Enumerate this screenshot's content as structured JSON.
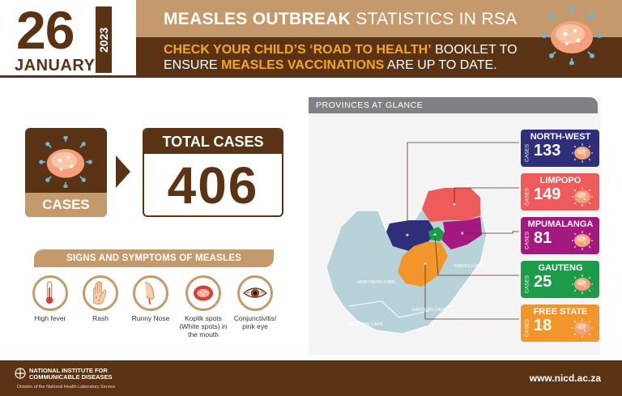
{
  "header": {
    "day": "26",
    "month": "JANUARY",
    "year": "2023",
    "title_bold": "MEASLES OUTBREAK",
    "title_rest": " STATISTICS IN RSA",
    "line1_bold": "CHECK YOUR CHILD’S ‘ROAD TO HEALTH’",
    "line1_rest": " BOOKLET TO",
    "line2_start": "ENSURE ",
    "line2_bold": "MEASLES VACCINATIONS",
    "line2_rest": " ARE UP TO DATE."
  },
  "cases": {
    "label": "CASES",
    "total_label": "TOTAL CASES",
    "total_value": "406"
  },
  "symptoms": {
    "heading": "SIGNS AND SYMPTOMS OF MEASLES",
    "items": [
      {
        "label": "High fever",
        "icon": "thermometer-icon"
      },
      {
        "label": "Rash",
        "icon": "rash-hand-icon"
      },
      {
        "label": "Runny Nose",
        "icon": "runny-nose-icon"
      },
      {
        "label": "Koplik spots (White spots) in the mouth",
        "icon": "mouth-spots-icon"
      },
      {
        "label": "Conjunctivitis/ pink eye",
        "icon": "pink-eye-icon"
      }
    ]
  },
  "provinces": {
    "heading": "PROVINCES AT GLANCE",
    "cases_word": "CASES",
    "items": [
      {
        "name": "NORTH-WEST",
        "value": "133",
        "color": "#2e2e7a"
      },
      {
        "name": "LIMPOPO",
        "value": "149",
        "color": "#ef5a5a"
      },
      {
        "name": "MPUMALANGA",
        "value": "81",
        "color": "#a3197f"
      },
      {
        "name": "GAUTENG",
        "value": "25",
        "color": "#1c9b48"
      },
      {
        "name": "FREE STATE",
        "value": "18",
        "color": "#f2962b"
      }
    ],
    "map_labels": {
      "northern_cape": "NORTHERN CAPE",
      "western_cape": "WESTERN CAPE",
      "eastern_cape": "EASTERN CAPE",
      "kzn": "KWAZULU-NATAL"
    }
  },
  "footer": {
    "org_line1": "NATIONAL INSTITUTE FOR",
    "org_line2": "COMMUNICABLE DISEASES",
    "division": "Division of the National Health Laboratory Service",
    "url": "www.nicd.ac.za"
  },
  "colors": {
    "brown": "#5a3214",
    "tan": "#c49a6c",
    "orange": "#f5a623"
  }
}
